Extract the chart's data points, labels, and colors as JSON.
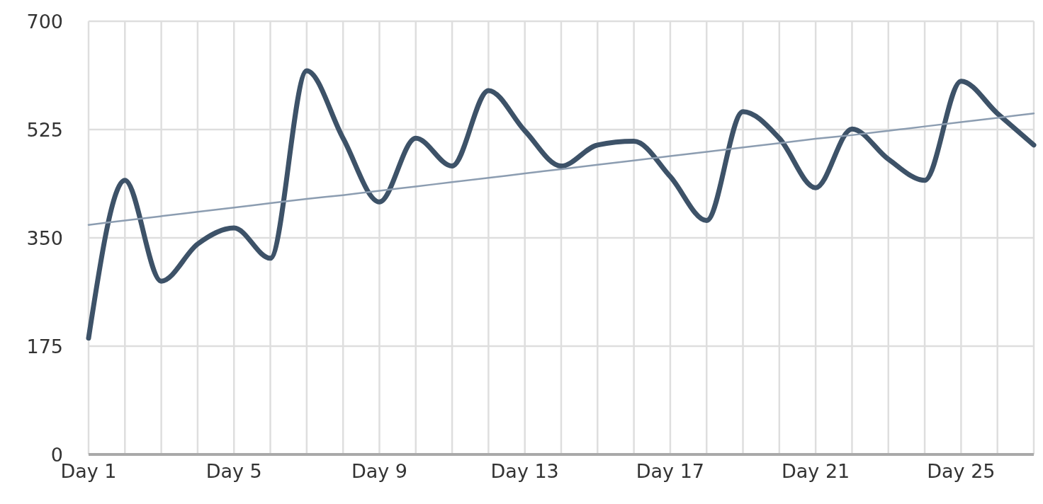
{
  "chart_data": {
    "type": "line",
    "categories": [
      "Day 1",
      null,
      null,
      null,
      "Day 5",
      null,
      null,
      null,
      "Day 9",
      null,
      null,
      null,
      "Day 13",
      null,
      null,
      null,
      "Day 17",
      null,
      null,
      null,
      "Day 21",
      null,
      null,
      null,
      "Day 25",
      null,
      null
    ],
    "series": [
      {
        "color": "#3d5268",
        "values": [
          188,
          443,
          280,
          340,
          366,
          317,
          620,
          511,
          408,
          511,
          466,
          588,
          523,
          466,
          500,
          506,
          449,
          378,
          554,
          511,
          431,
          526,
          477,
          443,
          603,
          551,
          500
        ]
      },
      {
        "color": "#8c9db1",
        "values": [
          371,
          378,
          385,
          392,
          399,
          406,
          413,
          419,
          426,
          433,
          440,
          447,
          454,
          461,
          468,
          475,
          482,
          489,
          496,
          503,
          510,
          516,
          523,
          530,
          537,
          544,
          551
        ]
      }
    ],
    "ylim": [
      0,
      700
    ],
    "yticks": [
      0,
      175,
      350,
      525,
      700
    ],
    "grid": true,
    "legend": false,
    "marker": "none",
    "line_style": "solid"
  }
}
